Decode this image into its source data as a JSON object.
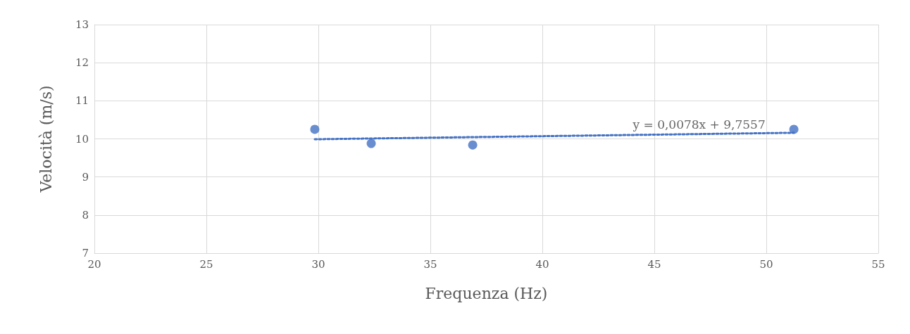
{
  "chart_data": {
    "type": "scatter",
    "xlabel": "Frequenza (Hz)",
    "ylabel": "Velocità (m/s)",
    "xlim": [
      20,
      55
    ],
    "xticks": [
      20,
      25,
      30,
      35,
      40,
      45,
      50,
      55
    ],
    "ylim": [
      7,
      13
    ],
    "yticks": [
      7,
      8,
      9,
      10,
      11,
      12,
      13
    ],
    "grid": true,
    "marker": "circle",
    "series": [
      {
        "color": "#4472c4",
        "x": [
          29.84,
          32.36,
          36.89,
          51.23
        ],
        "values": [
          10.25,
          9.88,
          9.84,
          10.25
        ]
      },
      {
        "type": "line",
        "color": "#4472c4",
        "line_style": "dotted",
        "marker": "none",
        "x": [
          29.84,
          51.23
        ],
        "values": [
          9.99,
          10.16
        ]
      }
    ],
    "annotations": [
      {
        "text": "y = 0,0078x + 9,7557",
        "x": 47,
        "y": 10.12
      }
    ]
  }
}
